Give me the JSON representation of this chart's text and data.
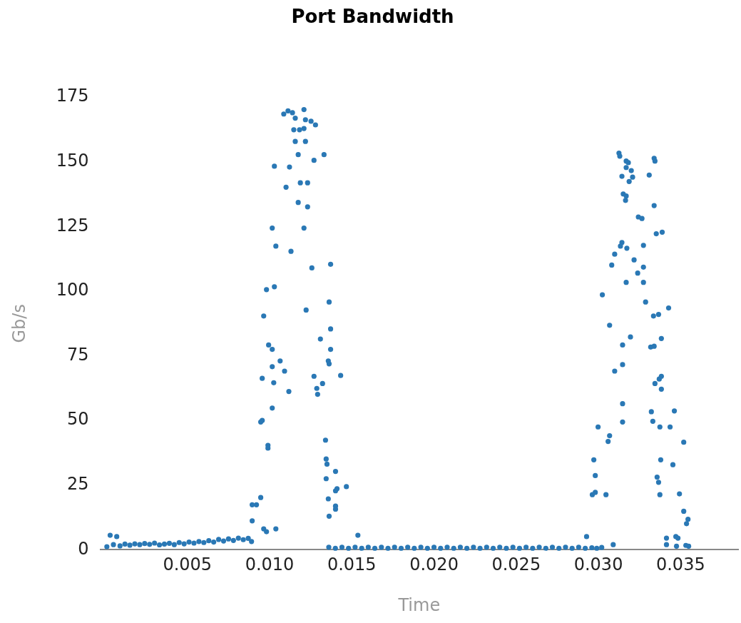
{
  "chart_data": {
    "type": "scatter",
    "title": "Port Bandwidth",
    "xlabel": "Time",
    "ylabel": "Gb/s",
    "color": "#2a78b5",
    "marker": "circle",
    "grid": false,
    "legend": false,
    "xlim": [
      -0.0003,
      0.0385
    ],
    "ylim": [
      0,
      175
    ],
    "xticks": [
      0.005,
      {
        "value": 0.01,
        "label": "0.010"
      },
      0.015,
      {
        "value": 0.02,
        "label": "0.020"
      },
      0.025,
      {
        "value": 0.03,
        "label": "0.030"
      },
      0.035
    ],
    "yticks": [
      0,
      25,
      50,
      75,
      100,
      125,
      150,
      175
    ],
    "x": [
      0.0001,
      0.0003,
      0.0005,
      0.0007,
      0.0009,
      0.0012,
      0.0015,
      0.0018,
      0.0021,
      0.0024,
      0.0027,
      0.003,
      0.0033,
      0.0036,
      0.0039,
      0.0042,
      0.0045,
      0.0048,
      0.0051,
      0.0054,
      0.0057,
      0.006,
      0.0063,
      0.0066,
      0.0069,
      0.0072,
      0.0075,
      0.0078,
      0.0081,
      0.0084,
      0.0087,
      0.0089,
      0.01086,
      0.01112,
      0.01139,
      0.01156,
      0.01209,
      0.01218,
      0.01252,
      0.01279,
      0.01147,
      0.01182,
      0.01209,
      0.01156,
      0.01218,
      0.01174,
      0.0127,
      0.01331,
      0.01029,
      0.01121,
      0.011,
      0.01187,
      0.01231,
      0.01174,
      0.01231,
      0.01016,
      0.01209,
      0.01038,
      0.0113,
      0.01257,
      0.01371,
      0.00981,
      0.01029,
      0.01222,
      0.01362,
      0.00964,
      0.01371,
      0.01309,
      0.01371,
      0.00994,
      0.01016,
      0.01357,
      0.01362,
      0.01064,
      0.01016,
      0.01091,
      0.0127,
      0.01432,
      0.00955,
      0.01025,
      0.01322,
      0.01287,
      0.01292,
      0.01117,
      0.01016,
      0.00946,
      0.00955,
      0.0099,
      0.0099,
      0.0134,
      0.01344,
      0.01349,
      0.01401,
      0.01344,
      0.01467,
      0.0141,
      0.01401,
      0.00894,
      0.0092,
      0.00946,
      0.01357,
      0.01401,
      0.01401,
      0.00894,
      0.00964,
      0.01038,
      0.00981,
      0.01362,
      0.01537,
      0.0136,
      0.014,
      0.0144,
      0.0148,
      0.0152,
      0.0156,
      0.016,
      0.0164,
      0.0168,
      0.0172,
      0.0176,
      0.018,
      0.0184,
      0.0188,
      0.0192,
      0.0196,
      0.02,
      0.0204,
      0.0208,
      0.0212,
      0.0216,
      0.022,
      0.0224,
      0.0228,
      0.0232,
      0.0236,
      0.024,
      0.0244,
      0.0248,
      0.0252,
      0.0256,
      0.026,
      0.0264,
      0.0268,
      0.0272,
      0.0276,
      0.028,
      0.0284,
      0.0288,
      0.0292,
      0.03125,
      0.0313,
      0.03339,
      0.03344,
      0.03169,
      0.03182,
      0.03169,
      0.032,
      0.03143,
      0.03208,
      0.03187,
      0.03309,
      0.03151,
      0.03169,
      0.03165,
      0.03339,
      0.03243,
      0.03265,
      0.03352,
      0.03388,
      0.03143,
      0.03134,
      0.03173,
      0.03274,
      0.03099,
      0.03081,
      0.03217,
      0.03274,
      0.03239,
      0.03169,
      0.03274,
      0.03024,
      0.03287,
      0.03335,
      0.03366,
      0.03427,
      0.03068,
      0.03195,
      0.03147,
      0.03383,
      0.03318,
      0.03339,
      0.03147,
      0.03099,
      0.03383,
      0.0337,
      0.03344,
      0.03383,
      0.03147,
      0.03147,
      0.03322,
      0.03462,
      0.03331,
      0.03374,
      0.03436,
      0.02998,
      0.03068,
      0.03059,
      0.03519,
      0.02972,
      0.03379,
      0.03453,
      0.02981,
      0.03357,
      0.03366,
      0.02963,
      0.02981,
      0.03046,
      0.03374,
      0.03493,
      0.03519,
      0.03545,
      0.03536,
      0.02928,
      0.03414,
      0.03471,
      0.03484,
      0.0309,
      0.03414,
      0.03475,
      0.03532,
      0.03549,
      0.0296,
      0.0299,
      0.0302
    ],
    "values": [
      1.2,
      5.6,
      2.0,
      5.1,
      1.5,
      2.2,
      1.8,
      2.3,
      2.0,
      2.4,
      2.1,
      2.6,
      1.9,
      2.2,
      2.5,
      2.0,
      2.8,
      2.3,
      3.0,
      2.6,
      3.2,
      2.8,
      3.5,
      3.0,
      4.0,
      3.4,
      4.2,
      3.6,
      4.5,
      3.9,
      4.4,
      3.2,
      168.5,
      169.7,
      169,
      166.9,
      170.2,
      166.3,
      165.7,
      164.3,
      162.4,
      162.4,
      162.9,
      157.9,
      157.9,
      152.8,
      150.6,
      152.8,
      148.3,
      148,
      140.2,
      141.9,
      141.9,
      134.3,
      132.6,
      124.4,
      124.4,
      117.4,
      115.4,
      109,
      110.4,
      100.6,
      101.7,
      92.7,
      95.8,
      90.4,
      85.4,
      81.5,
      77.5,
      79.2,
      77.5,
      73,
      71.9,
      73,
      70.8,
      69.1,
      67.1,
      67.4,
      66.3,
      64.6,
      64.3,
      62.4,
      60.1,
      61.2,
      54.8,
      49.4,
      50,
      40.4,
      39.3,
      42.4,
      35.1,
      33.1,
      30.3,
      27.5,
      24.4,
      23.6,
      22.8,
      17.4,
      17.4,
      20.2,
      19.7,
      16.9,
      15.7,
      11.2,
      8.1,
      8.1,
      7,
      13,
      5.6,
      1.0,
      0.6,
      1.0,
      0.6,
      1.0,
      0.6,
      1.0,
      0.6,
      1.0,
      0.6,
      1.0,
      0.6,
      1.0,
      0.6,
      1.0,
      0.6,
      1.0,
      0.6,
      1.0,
      0.6,
      1.0,
      0.6,
      1.0,
      0.6,
      1.0,
      0.6,
      1.0,
      0.6,
      1.0,
      0.6,
      1.0,
      0.6,
      1.0,
      0.6,
      1.0,
      0.6,
      1.0,
      0.6,
      1.0,
      0.6,
      153.4,
      152.2,
      151.4,
      150.3,
      150.3,
      149.7,
      147.8,
      146.6,
      144.4,
      144.1,
      142.4,
      144.9,
      137.6,
      136.8,
      135.1,
      133.1,
      128.7,
      128.1,
      122.2,
      122.8,
      118.8,
      117.4,
      116.6,
      117.7,
      114.3,
      110.1,
      112.1,
      109.3,
      107,
      103.4,
      103.4,
      98.6,
      95.8,
      90.4,
      91,
      93.5,
      86.8,
      82.3,
      79.2,
      81.7,
      78.4,
      78.7,
      71.6,
      69.1,
      67.1,
      66,
      64.3,
      62.1,
      56.5,
      49.4,
      53.4,
      53.7,
      49.7,
      47.5,
      47.5,
      47.5,
      44.1,
      41.9,
      41.6,
      34.8,
      34.8,
      32.9,
      28.7,
      28.1,
      26.1,
      21.3,
      22.2,
      21.3,
      21.3,
      21.6,
      14.9,
      11.8,
      10.1,
      5.1,
      4.5,
      5.1,
      4.5,
      2,
      2,
      1.4,
      1.7,
      1.4,
      0.8,
      0.6,
      0.9
    ]
  }
}
